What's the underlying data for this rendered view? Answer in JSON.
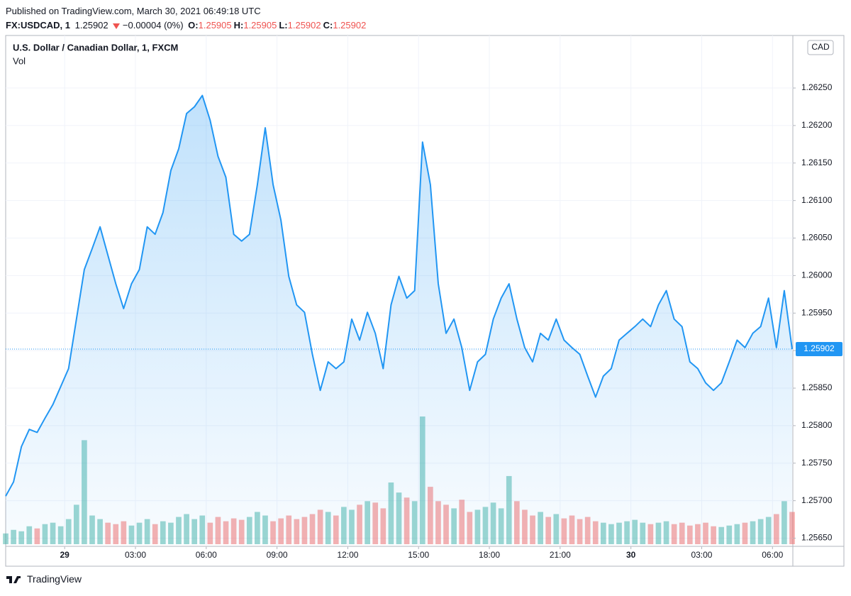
{
  "header": {
    "published": "Published on TradingView.com, March 30, 2021 06:49:18 UTC",
    "symbol": "FX:USDCAD, 1",
    "last": 1.25902,
    "change": "−0.00004 (0%)",
    "ohlc": [
      {
        "key": "O:",
        "value": 1.25905
      },
      {
        "key": "H:",
        "value": 1.25905
      },
      {
        "key": "L:",
        "value": 1.25902
      },
      {
        "key": "C:",
        "value": 1.25902
      }
    ]
  },
  "chart_data": {
    "type": "area",
    "title": "U.S. Dollar / Canadian Dollar, 1, FXCM",
    "volume_label": "Vol",
    "currency": "CAD",
    "color": "#2196f3",
    "values": [
      1.25706,
      1.25725,
      1.25772,
      1.25795,
      1.25791,
      1.2581,
      1.25828,
      1.25852,
      1.25876,
      1.25942,
      1.26008,
      1.26036,
      1.26065,
      1.26027,
      1.25989,
      1.25956,
      1.25989,
      1.26008,
      1.26065,
      1.26055,
      1.26084,
      1.2614,
      1.26169,
      1.26216,
      1.26225,
      1.2624,
      1.26207,
      1.26159,
      1.26131,
      1.26055,
      1.26046,
      1.26055,
      1.26121,
      1.26197,
      1.26121,
      1.26074,
      1.25999,
      1.25961,
      1.25951,
      1.25895,
      1.25847,
      1.25885,
      1.25876,
      1.25885,
      1.25942,
      1.25914,
      1.25951,
      1.25923,
      1.25876,
      1.25961,
      1.25999,
      1.2597,
      1.2598,
      1.26178,
      1.26121,
      1.25989,
      1.25923,
      1.25942,
      1.25904,
      1.25847,
      1.25885,
      1.25895,
      1.25942,
      1.2597,
      1.25989,
      1.25942,
      1.25904,
      1.25885,
      1.25923,
      1.25914,
      1.25942,
      1.25914,
      1.25904,
      1.25895,
      1.25866,
      1.25838,
      1.25866,
      1.25876,
      1.25914,
      1.25923,
      1.25932,
      1.25942,
      1.25932,
      1.25961,
      1.2598,
      1.25942,
      1.25932,
      1.25885,
      1.25876,
      1.25857,
      1.25847,
      1.25857,
      1.25885,
      1.25914,
      1.25904,
      1.25923,
      1.25932,
      1.2597,
      1.25904,
      1.2598,
      1.25902
    ],
    "volume": [
      15,
      20,
      18,
      25,
      22,
      28,
      30,
      25,
      35,
      55,
      145,
      40,
      35,
      30,
      28,
      32,
      26,
      30,
      35,
      28,
      32,
      30,
      38,
      42,
      35,
      40,
      30,
      38,
      32,
      36,
      34,
      38,
      45,
      40,
      32,
      36,
      40,
      35,
      38,
      42,
      48,
      45,
      40,
      52,
      48,
      55,
      60,
      58,
      50,
      86,
      72,
      65,
      60,
      178,
      80,
      60,
      55,
      50,
      62,
      45,
      48,
      52,
      58,
      50,
      95,
      60,
      48,
      40,
      45,
      38,
      42,
      36,
      40,
      35,
      38,
      32,
      30,
      28,
      30,
      32,
      34,
      30,
      28,
      30,
      32,
      28,
      30,
      26,
      28,
      30,
      25,
      24,
      26,
      28,
      30,
      32,
      35,
      38,
      42,
      60,
      45
    ],
    "xlim": [
      0,
      100
    ],
    "xticks": [
      {
        "value": 7.5,
        "label": "29"
      },
      {
        "value": 16.5,
        "label": "03:00"
      },
      {
        "value": 25.5,
        "label": "06:00"
      },
      {
        "value": 34.5,
        "label": "09:00"
      },
      {
        "value": 43.5,
        "label": "12:00"
      },
      {
        "value": 52.5,
        "label": "15:00"
      },
      {
        "value": 61.5,
        "label": "18:00"
      },
      {
        "value": 70.5,
        "label": "21:00"
      },
      {
        "value": 79.5,
        "label": "30"
      },
      {
        "value": 88.5,
        "label": "03:00"
      },
      {
        "value": 97.5,
        "label": "06:00"
      }
    ],
    "ylim": [
      1.25642,
      1.2632
    ],
    "yticks": [
      {
        "value": 1.2565,
        "label": "1.25650"
      },
      {
        "value": 1.257,
        "label": "1.25700"
      },
      {
        "value": 1.2575,
        "label": "1.25750"
      },
      {
        "value": 1.258,
        "label": "1.25800"
      },
      {
        "value": 1.2585,
        "label": "1.25850"
      },
      {
        "value": 1.259,
        "label": "1.25900"
      },
      {
        "value": 1.2595,
        "label": "1.25950"
      },
      {
        "value": 1.26,
        "label": "1.26000"
      },
      {
        "value": 1.2605,
        "label": "1.26050"
      },
      {
        "value": 1.261,
        "label": "1.26100"
      },
      {
        "value": 1.2615,
        "label": "1.26150"
      },
      {
        "value": 1.262,
        "label": "1.26200"
      },
      {
        "value": 1.2625,
        "label": "1.26250"
      }
    ],
    "grid": true
  },
  "footer": {
    "brand": "TradingView"
  }
}
